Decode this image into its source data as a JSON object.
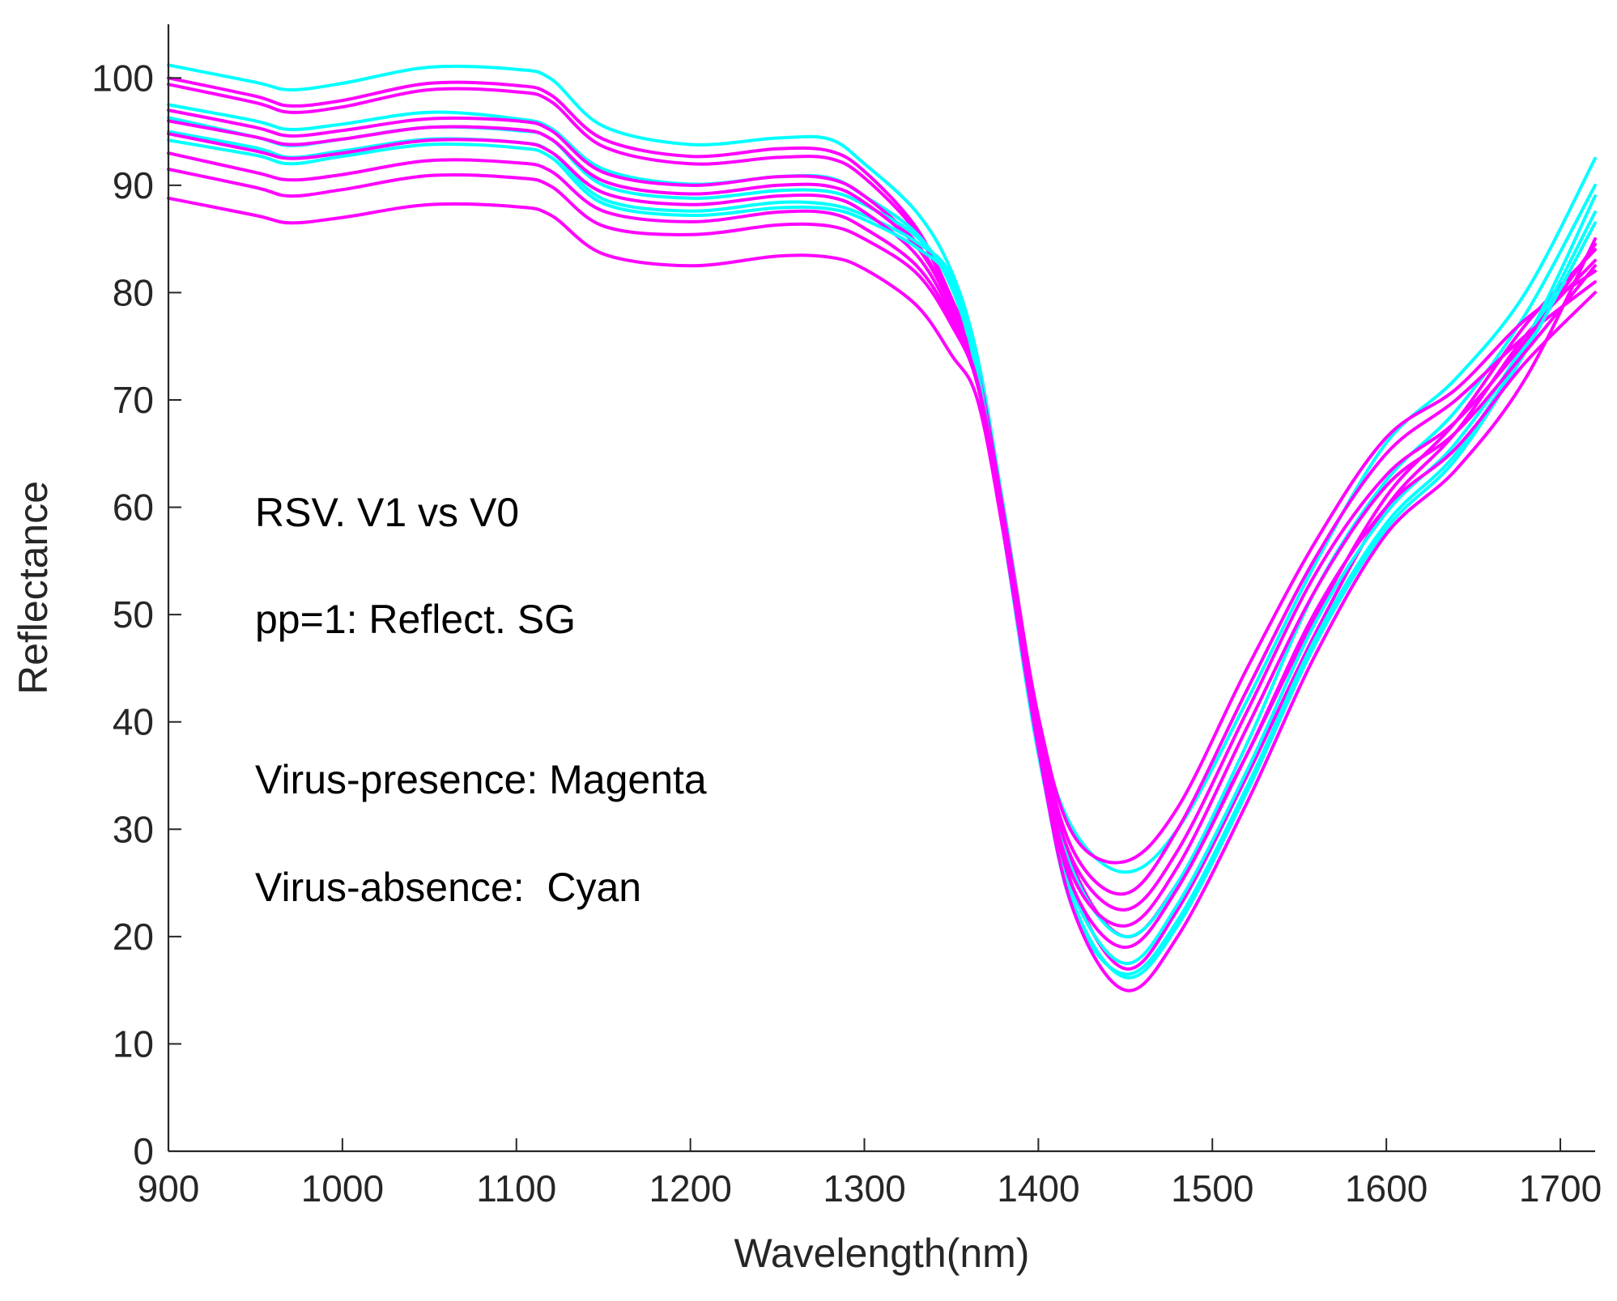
{
  "chart_data": {
    "type": "line",
    "title": "",
    "xlabel": "Wavelength(nm)",
    "ylabel": "Reflectance",
    "xlim": [
      900,
      1720
    ],
    "ylim": [
      0,
      105
    ],
    "xticks": [
      900,
      1000,
      1100,
      1200,
      1300,
      1400,
      1500,
      1600,
      1700
    ],
    "yticks": [
      0,
      10,
      20,
      30,
      40,
      50,
      60,
      70,
      80,
      90,
      100
    ],
    "grid": false,
    "legend": null,
    "annotations": [
      "RSV. V1 vs V0",
      "pp=1: Reflect. SG",
      "Virus-presence: Magenta",
      "Virus-absence:  Cyan"
    ],
    "x": [
      900,
      950,
      970,
      1000,
      1050,
      1100,
      1120,
      1150,
      1200,
      1250,
      1280,
      1300,
      1330,
      1350,
      1365,
      1380,
      1400,
      1420,
      1450,
      1480,
      1520,
      1560,
      1600,
      1640,
      1680,
      1720
    ],
    "series": [
      {
        "name": "Virus-absence",
        "color": "#00FFFF",
        "values": [
          101.2,
          99.6,
          98.9,
          99.5,
          101.0,
          100.8,
          99.9,
          95.5,
          93.8,
          94.4,
          94.3,
          92.0,
          87.5,
          82.0,
          74.0,
          60.0,
          40.0,
          30.0,
          26.0,
          30.0,
          42.0,
          55.0,
          66.0,
          72.0,
          80.0,
          92.5
        ]
      },
      {
        "name": "Virus-absence",
        "color": "#00FFFF",
        "values": [
          97.5,
          96.0,
          95.2,
          95.7,
          96.8,
          96.2,
          95.3,
          91.5,
          90.1,
          90.8,
          90.7,
          89.0,
          85.5,
          80.5,
          72.5,
          58.5,
          38.5,
          26.0,
          20.0,
          25.0,
          38.0,
          52.5,
          62.5,
          69.0,
          78.0,
          90.0
        ]
      },
      {
        "name": "Virus-absence",
        "color": "#00FFFF",
        "values": [
          96.3,
          94.5,
          93.7,
          94.3,
          95.4,
          95.1,
          94.3,
          90.0,
          88.8,
          89.5,
          89.4,
          88.2,
          85.2,
          80.8,
          72.0,
          57.5,
          37.0,
          24.0,
          17.5,
          23.0,
          35.5,
          49.5,
          59.5,
          66.0,
          75.5,
          89.0
        ]
      },
      {
        "name": "Virus-absence",
        "color": "#00FFFF",
        "values": [
          95.0,
          93.5,
          92.6,
          93.2,
          94.3,
          94.0,
          93.1,
          88.7,
          87.6,
          88.4,
          88.2,
          87.2,
          84.7,
          81.5,
          72.8,
          58.0,
          37.5,
          22.5,
          16.5,
          21.5,
          34.0,
          48.0,
          58.5,
          65.0,
          75.0,
          87.5
        ]
      },
      {
        "name": "Virus-absence",
        "color": "#00FFFF",
        "values": [
          94.2,
          92.8,
          92.0,
          92.7,
          93.8,
          93.5,
          92.6,
          88.3,
          87.2,
          87.9,
          87.8,
          86.8,
          84.2,
          81.0,
          72.2,
          57.8,
          37.8,
          23.2,
          16.2,
          21.0,
          33.5,
          47.5,
          58.0,
          64.5,
          74.5,
          86.5
        ]
      },
      {
        "name": "Virus-presence",
        "color": "#FF00FF",
        "values": [
          100.0,
          98.3,
          97.4,
          97.9,
          99.5,
          99.3,
          98.4,
          94.3,
          92.7,
          93.4,
          93.2,
          91.3,
          86.0,
          79.5,
          73.0,
          60.0,
          40.0,
          26.5,
          20.0,
          25.0,
          37.0,
          50.0,
          61.0,
          68.0,
          77.0,
          84.0
        ]
      },
      {
        "name": "Virus-presence",
        "color": "#FF00FF",
        "values": [
          99.4,
          97.7,
          96.8,
          97.3,
          98.9,
          98.7,
          97.8,
          93.6,
          92.0,
          92.6,
          92.5,
          90.7,
          85.6,
          79.2,
          72.8,
          59.5,
          39.0,
          24.5,
          17.0,
          22.5,
          35.0,
          48.5,
          60.0,
          67.0,
          76.0,
          83.0
        ]
      },
      {
        "name": "Virus-presence",
        "color": "#FF00FF",
        "values": [
          97.0,
          95.4,
          94.6,
          95.1,
          96.2,
          96.0,
          95.1,
          91.2,
          90.0,
          90.8,
          90.6,
          89.0,
          84.6,
          78.8,
          72.4,
          59.3,
          40.5,
          29.5,
          27.0,
          32.0,
          45.0,
          57.0,
          66.5,
          71.0,
          77.5,
          82.0
        ]
      },
      {
        "name": "Virus-presence",
        "color": "#FF00FF",
        "values": [
          96.0,
          94.5,
          93.8,
          94.3,
          95.4,
          95.2,
          94.3,
          90.4,
          89.2,
          90.0,
          89.9,
          88.4,
          84.3,
          78.6,
          72.3,
          59.1,
          39.8,
          28.0,
          24.0,
          30.0,
          43.0,
          55.5,
          65.0,
          70.0,
          76.0,
          81.0
        ]
      },
      {
        "name": "Virus-presence",
        "color": "#FF00FF",
        "values": [
          94.8,
          93.2,
          92.5,
          93.0,
          94.2,
          94.0,
          93.1,
          89.3,
          88.2,
          89.0,
          88.9,
          87.5,
          83.5,
          78.0,
          72.0,
          58.5,
          39.0,
          27.0,
          22.5,
          28.0,
          41.0,
          54.0,
          63.0,
          68.0,
          75.5,
          84.5
        ]
      },
      {
        "name": "Virus-presence",
        "color": "#FF00FF",
        "values": [
          93.0,
          91.2,
          90.5,
          91.0,
          92.3,
          92.1,
          91.3,
          87.6,
          86.6,
          87.5,
          87.4,
          86.0,
          82.5,
          77.5,
          71.7,
          58.2,
          38.5,
          25.5,
          21.0,
          26.5,
          39.5,
          52.5,
          62.0,
          67.0,
          74.5,
          82.5
        ]
      },
      {
        "name": "Virus-presence",
        "color": "#FF00FF",
        "values": [
          91.5,
          89.8,
          89.0,
          89.6,
          90.9,
          90.7,
          89.9,
          86.2,
          85.4,
          86.3,
          86.2,
          85.0,
          81.8,
          77.0,
          71.4,
          58.0,
          38.0,
          24.5,
          19.0,
          24.5,
          37.0,
          50.5,
          60.0,
          65.5,
          73.5,
          80.0
        ]
      },
      {
        "name": "Virus-presence",
        "color": "#FF00FF",
        "values": [
          88.8,
          87.2,
          86.5,
          87.0,
          88.2,
          88.0,
          87.2,
          83.6,
          82.5,
          83.4,
          83.3,
          82.2,
          78.8,
          74.2,
          70.0,
          57.5,
          37.5,
          22.5,
          15.0,
          20.0,
          32.5,
          46.5,
          57.5,
          63.5,
          72.0,
          85.0
        ]
      }
    ]
  }
}
